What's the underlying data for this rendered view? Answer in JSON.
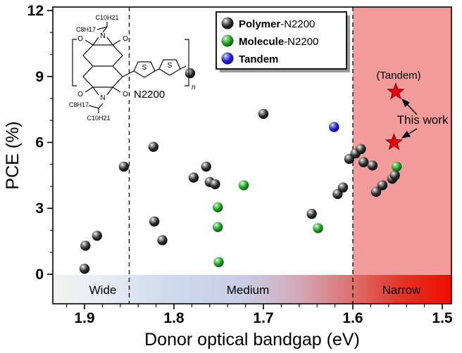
{
  "legend": {
    "items": [
      {
        "bold": "Polymer",
        "rest": "-N2200"
      },
      {
        "bold": "Molecule",
        "rest": "-N2200"
      },
      {
        "bold": "Tandem",
        "rest": ""
      }
    ]
  },
  "structure": {
    "name": "N2200",
    "alkyl_c10": "C10H21",
    "alkyl_c8": "C8H17",
    "repeat_index": "n",
    "sulfur": "S",
    "nitrogen": "N",
    "oxygen": "O"
  },
  "chart_data": {
    "type": "scatter",
    "title": "",
    "xlabel": "Donor optical bandgap (eV)",
    "ylabel": "PCE (%)",
    "x_axis_reversed": true,
    "xlim": [
      1.935,
      1.49
    ],
    "ylim": [
      0,
      12
    ],
    "x_ticks": [
      1.9,
      1.8,
      1.7,
      1.6,
      1.5
    ],
    "y_ticks": [
      0,
      3,
      6,
      9,
      12
    ],
    "grid": false,
    "legend_position": "top-center",
    "dashed_guides_x": [
      1.85,
      1.6
    ],
    "shaded_region": {
      "x_range": [
        1.6,
        1.49
      ],
      "color": "#f49c9c"
    },
    "bandgap_regions": [
      {
        "label": "Wide",
        "x_range": [
          1.935,
          1.85
        ]
      },
      {
        "label": "Medium",
        "x_range": [
          1.85,
          1.6
        ]
      },
      {
        "label": "Narrow",
        "x_range": [
          1.6,
          1.49
        ]
      }
    ],
    "series": [
      {
        "name": "Polymer-N2200",
        "marker": "sphere",
        "color": "#1a1a1a",
        "gradient_id": "gradBlack",
        "points": [
          [
            1.9,
            0.25
          ],
          [
            1.899,
            1.3
          ],
          [
            1.886,
            1.75
          ],
          [
            1.856,
            4.9
          ],
          [
            1.823,
            5.8
          ],
          [
            1.822,
            2.4
          ],
          [
            1.813,
            1.55
          ],
          [
            1.782,
            9.15
          ],
          [
            1.778,
            4.4
          ],
          [
            1.764,
            4.9
          ],
          [
            1.76,
            4.2
          ],
          [
            1.754,
            4.1
          ],
          [
            1.7,
            7.3
          ],
          [
            1.646,
            2.75
          ],
          [
            1.617,
            3.65
          ],
          [
            1.611,
            3.95
          ],
          [
            1.604,
            5.25
          ],
          [
            1.597,
            5.5
          ],
          [
            1.591,
            5.7
          ],
          [
            1.588,
            5.1
          ],
          [
            1.578,
            4.95
          ],
          [
            1.574,
            3.75
          ],
          [
            1.567,
            4.05
          ],
          [
            1.556,
            4.35
          ],
          [
            1.553,
            4.5
          ]
        ]
      },
      {
        "name": "Molecule-N2200",
        "marker": "sphere",
        "color": "#22a022",
        "gradient_id": "gradGreen",
        "points": [
          [
            1.751,
            3.05
          ],
          [
            1.751,
            2.15
          ],
          [
            1.75,
            0.55
          ],
          [
            1.722,
            4.05
          ],
          [
            1.639,
            2.1
          ],
          [
            1.551,
            4.9
          ]
        ]
      },
      {
        "name": "Tandem",
        "marker": "sphere",
        "color": "#1818d8",
        "gradient_id": "gradBlue",
        "points": [
          [
            1.621,
            6.7
          ]
        ]
      }
    ],
    "highlight": {
      "name": "This work",
      "marker": "star",
      "color": "#e60012",
      "points": [
        [
          1.552,
          8.3
        ],
        [
          1.554,
          6.0
        ]
      ],
      "labels": [
        "(Tandem)",
        "This work"
      ]
    }
  }
}
